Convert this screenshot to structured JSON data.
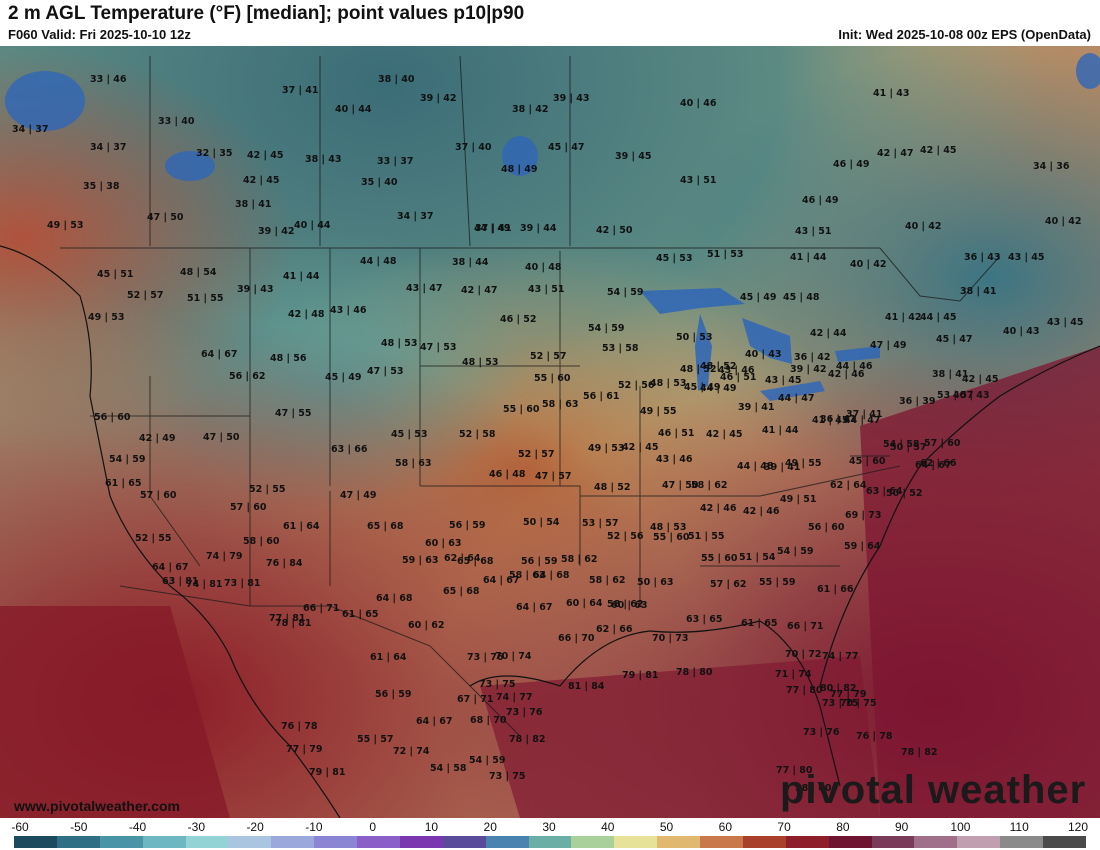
{
  "header": {
    "title": "2 m AGL Temperature (°F) [median]; point values p10|p90",
    "valid": "F060 Valid: Fri 2025-10-10 12z",
    "init": "Init: Wed 2025-10-08 00z EPS (OpenData)"
  },
  "footer": {
    "website": "www.pivotalweather.com",
    "brand": "pivotal weather"
  },
  "colorbar": {
    "ticks": [
      "-60",
      "-50",
      "-40",
      "-30",
      "-20",
      "-10",
      "0",
      "10",
      "20",
      "30",
      "40",
      "50",
      "60",
      "70",
      "80",
      "90",
      "100",
      "110",
      "120"
    ],
    "colors": [
      "#1c4a5e",
      "#2f6f85",
      "#4a94a8",
      "#6cb7c2",
      "#93d3d6",
      "#a9c5e0",
      "#9aa8dc",
      "#8b86d3",
      "#8a5fc7",
      "#7a37b0",
      "#5a4a9a",
      "#4a82b0",
      "#6aaea6",
      "#a9cf9a",
      "#e7e29a",
      "#e0b870",
      "#c8784a",
      "#a8402c",
      "#8e1f2a",
      "#6e1430",
      "#7a3a5a",
      "#a0708a",
      "#c0a0b0",
      "#8a8a8a",
      "#4a4a4a"
    ]
  },
  "point_values": [
    "33|46",
    "37|41",
    "38|40",
    "39|42",
    "38|42",
    "39|43",
    "40|46",
    "41|43",
    "34|37",
    "33|40",
    "40|44",
    "37|40",
    "34|37",
    "32|35",
    "42|45",
    "38|43",
    "33|37",
    "45|47",
    "39|45",
    "48|49",
    "46|49",
    "42|47",
    "42|45",
    "34|36",
    "35|38",
    "42|45",
    "35|40",
    "43|51",
    "46|49",
    "38|41",
    "34|37",
    "44|49",
    "47|50",
    "49|53",
    "39|42",
    "40|44",
    "37|41",
    "39|44",
    "42|50",
    "40|42",
    "40|42",
    "43|51",
    "44|48",
    "38|44",
    "40|48",
    "45|53",
    "51|53",
    "41|44",
    "40|42",
    "36|43",
    "43|45",
    "45|51",
    "48|54",
    "41|44",
    "43|47",
    "42|47",
    "43|51",
    "54|59",
    "45|49",
    "45|48",
    "38|41",
    "52|57",
    "51|55",
    "39|43",
    "42|48",
    "43|46",
    "46|52",
    "54|59",
    "50|53",
    "42|44",
    "41|42",
    "44|45",
    "40|43",
    "43|45",
    "49|53",
    "48|53",
    "47|53",
    "53|58",
    "45|47",
    "48|52",
    "46|51",
    "64|67",
    "48|56",
    "45|49",
    "47|53",
    "48|53",
    "52|57",
    "48|52",
    "43|46",
    "40|43",
    "36|42",
    "47|49",
    "44|46",
    "44|49",
    "56|62",
    "55|60",
    "52|56",
    "48|53",
    "45|49",
    "43|45",
    "39|42",
    "42|46",
    "38|41",
    "42|45",
    "53|57",
    "56|60",
    "47|55",
    "55|60",
    "58|63",
    "56|61",
    "49|55",
    "39|41",
    "44|47",
    "36|41",
    "37|41",
    "36|39",
    "40|43",
    "42|49",
    "47|50",
    "45|53",
    "52|58",
    "46|51",
    "42|45",
    "41|44",
    "41|45",
    "44|47",
    "54|58",
    "57|60",
    "54|59",
    "63|66",
    "58|63",
    "52|57",
    "49|53",
    "42|45",
    "43|46",
    "44|48",
    "39|41",
    "49|55",
    "45|60",
    "50|57",
    "62|66",
    "61|65",
    "46|48",
    "47|57",
    "58|62",
    "64|67",
    "57|60",
    "52|55",
    "47|49",
    "48|52",
    "47|50",
    "42|46",
    "42|46",
    "49|51",
    "62|64",
    "63|64",
    "50|52",
    "57|60",
    "61|64",
    "65|68",
    "56|59",
    "50|54",
    "53|57",
    "48|53",
    "51|55",
    "56|60",
    "69|73",
    "58|60",
    "60|63",
    "52|56",
    "55|60",
    "55|60",
    "51|54",
    "54|59",
    "59|64",
    "52|55",
    "64|67",
    "74|79",
    "76|84",
    "59|63",
    "62|64",
    "65|68",
    "58|62",
    "56|59",
    "58|63",
    "63|81",
    "74|81",
    "73|81",
    "64|68",
    "65|68",
    "64|67",
    "64|68",
    "58|62",
    "57|62",
    "55|59",
    "61|66",
    "66|71",
    "50|63",
    "60|64",
    "60|63",
    "58|62",
    "77|81",
    "61|65",
    "60|62",
    "64|67",
    "66|70",
    "62|66",
    "70|73",
    "63|65",
    "61|65",
    "66|71",
    "78|81",
    "61|64",
    "73|76",
    "70|74",
    "70|72",
    "74|77",
    "81|84",
    "79|81",
    "78|80",
    "71|74",
    "77|80",
    "56|59",
    "67|71",
    "73|75",
    "74|77",
    "73|75",
    "80|82",
    "64|67",
    "68|70",
    "73|76",
    "70|75",
    "77|79",
    "73|76",
    "76|78",
    "77|79",
    "55|57",
    "72|74",
    "78|82",
    "76|78",
    "79|81",
    "54|58",
    "54|59",
    "73|75",
    "77|80",
    "78|82",
    "58|60"
  ]
}
